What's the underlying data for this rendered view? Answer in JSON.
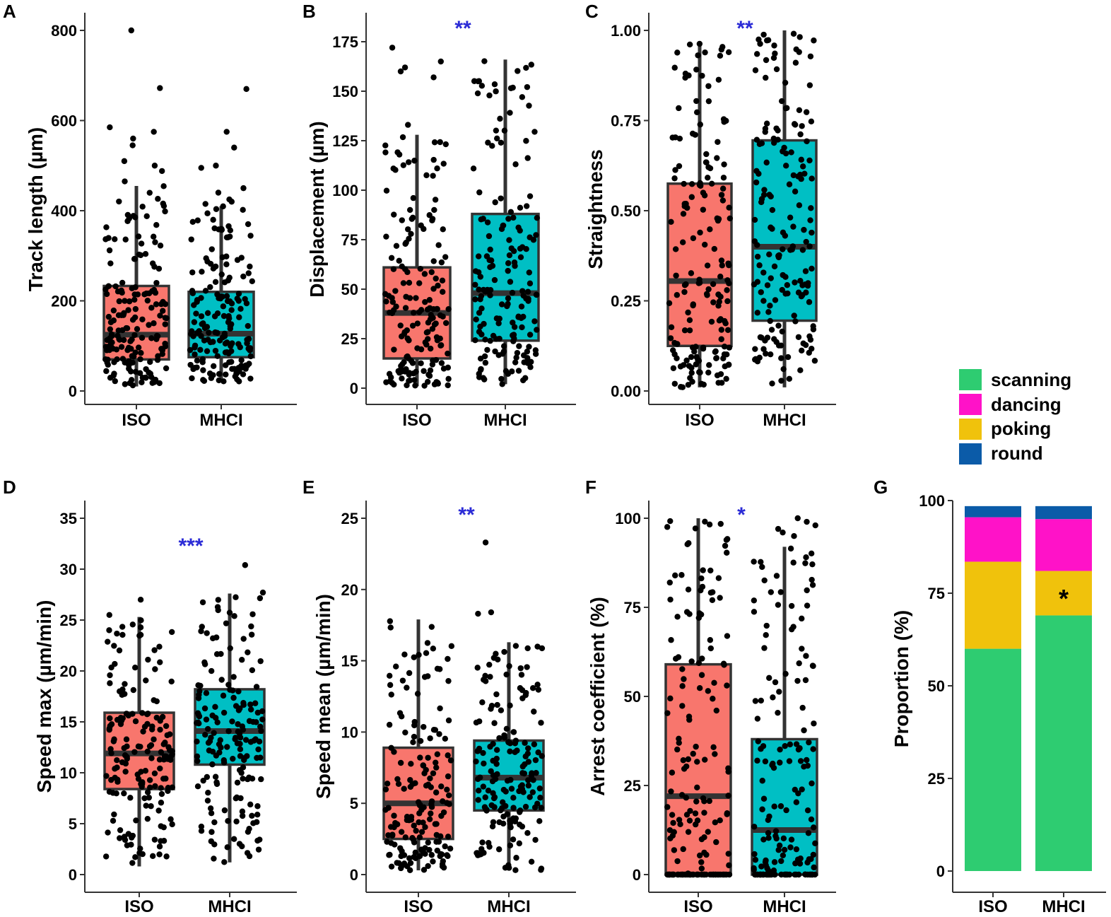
{
  "colors": {
    "ISO": "#F8766D",
    "MHCI": "#00BFC4",
    "sig": "#2b2bd6",
    "scanning": "#2ECC71",
    "dancing": "#FF12C8",
    "poking": "#F0C20C",
    "round": "#0B5BA8",
    "box_line": "#333333",
    "point": "#000000"
  },
  "legend": [
    {
      "label": "scanning",
      "color": "scanning"
    },
    {
      "label": "dancing",
      "color": "dancing"
    },
    {
      "label": "poking",
      "color": "poking"
    },
    {
      "label": "round",
      "color": "round"
    }
  ],
  "chart_data": [
    {
      "type": "box",
      "panel": "A",
      "ylabel": "Track length (µm)",
      "categories": [
        "ISO",
        "MHCI"
      ],
      "ylim": [
        0,
        820
      ],
      "yticks": [
        0,
        200,
        400,
        600,
        800
      ],
      "significance": "",
      "boxes": [
        {
          "q1": 70,
          "median": 125,
          "q3": 233,
          "whisker_low": 10,
          "whisker_high": 455
        },
        {
          "q1": 75,
          "median": 127,
          "q3": 220,
          "whisker_low": 20,
          "whisker_high": 410
        }
      ],
      "outliers": [
        [
          800,
          672,
          585,
          575,
          560,
          545,
          510,
          500,
          488,
          465
        ],
        [
          670,
          575,
          540,
          500,
          495,
          450,
          440,
          425,
          420,
          415
        ]
      ]
    },
    {
      "type": "box",
      "panel": "B",
      "ylabel": "Displacement (µm)",
      "categories": [
        "ISO",
        "MHCI"
      ],
      "ylim": [
        0,
        185
      ],
      "yticks": [
        0,
        25,
        50,
        75,
        100,
        125,
        150,
        175
      ],
      "significance": "**",
      "boxes": [
        {
          "q1": 15,
          "median": 38,
          "q3": 61,
          "whisker_low": 1,
          "whisker_high": 128
        },
        {
          "q1": 24,
          "median": 48,
          "q3": 88,
          "whisker_low": 2,
          "whisker_high": 166
        }
      ],
      "outliers": [
        [
          172,
          165,
          162,
          160,
          157,
          133
        ],
        []
      ]
    },
    {
      "type": "box",
      "panel": "C",
      "ylabel": "Straightness",
      "categories": [
        "ISO",
        "MHCI"
      ],
      "ylim": [
        0,
        1.03
      ],
      "yticks": [
        0.0,
        0.25,
        0.5,
        0.75,
        1.0
      ],
      "tick_labels": [
        "0.00",
        "0.25",
        "0.50",
        "0.75",
        "1.00"
      ],
      "significance": "**",
      "boxes": [
        {
          "q1": 0.125,
          "median": 0.305,
          "q3": 0.575,
          "whisker_low": 0.01,
          "whisker_high": 0.965
        },
        {
          "q1": 0.195,
          "median": 0.4,
          "q3": 0.695,
          "whisker_low": 0.01,
          "whisker_high": 1.0
        }
      ],
      "outliers": [
        [],
        []
      ]
    },
    {
      "type": "box",
      "panel": "D",
      "ylabel": "Speed max (µm/min)",
      "categories": [
        "ISO",
        "MHCI"
      ],
      "ylim": [
        0,
        36
      ],
      "yticks": [
        0,
        5,
        10,
        15,
        20,
        25,
        30,
        35
      ],
      "significance": "***",
      "boxes": [
        {
          "q1": 8.4,
          "median": 11.9,
          "q3": 15.9,
          "whisker_low": 0.8,
          "whisker_high": 25.3
        },
        {
          "q1": 10.8,
          "median": 14.1,
          "q3": 18.2,
          "whisker_low": 1.2,
          "whisker_high": 27.6
        }
      ],
      "outliers": [
        [
          27.0,
          25.5
        ],
        [
          30.4,
          27.7
        ]
      ]
    },
    {
      "type": "box",
      "panel": "E",
      "ylabel": "Speed mean (µm/min)",
      "categories": [
        "ISO",
        "MHCI"
      ],
      "ylim": [
        0,
        26
      ],
      "yticks": [
        0,
        5,
        10,
        15,
        20,
        25
      ],
      "significance": "**",
      "boxes": [
        {
          "q1": 2.5,
          "median": 5.0,
          "q3": 8.9,
          "whisker_low": 0.3,
          "whisker_high": 17.9
        },
        {
          "q1": 4.5,
          "median": 6.8,
          "q3": 9.4,
          "whisker_low": 0.3,
          "whisker_high": 16.3
        }
      ],
      "outliers": [
        [],
        [
          23.3,
          18.4,
          18.3
        ]
      ]
    },
    {
      "type": "box",
      "panel": "F",
      "ylabel": "Arrest coefficient (%)",
      "categories": [
        "ISO",
        "MHCI"
      ],
      "ylim": [
        0,
        105
      ],
      "yticks": [
        0,
        25,
        50,
        75,
        100
      ],
      "significance": "*",
      "boxes": [
        {
          "q1": 0,
          "median": 22,
          "q3": 59,
          "whisker_low": 0,
          "whisker_high": 100
        },
        {
          "q1": 0,
          "median": 12.5,
          "q3": 38,
          "whisker_low": 0,
          "whisker_high": 92
        }
      ],
      "outliers": [
        [],
        [
          100,
          99,
          98,
          97,
          96,
          95
        ]
      ]
    },
    {
      "type": "stacked_bar",
      "panel": "G",
      "ylabel": "Proportion (%)",
      "categories": [
        "ISO",
        "MHCI"
      ],
      "ylim": [
        0,
        100
      ],
      "yticks": [
        0,
        25,
        50,
        75,
        100
      ],
      "series": [
        {
          "name": "scanning",
          "values": [
            60,
            69
          ]
        },
        {
          "name": "poking",
          "values": [
            23.5,
            12
          ]
        },
        {
          "name": "dancing",
          "values": [
            12,
            14
          ]
        },
        {
          "name": "round",
          "values": [
            3,
            3.5
          ]
        }
      ],
      "annotation": {
        "text": "*",
        "category": "MHCI",
        "value": 75
      }
    }
  ]
}
